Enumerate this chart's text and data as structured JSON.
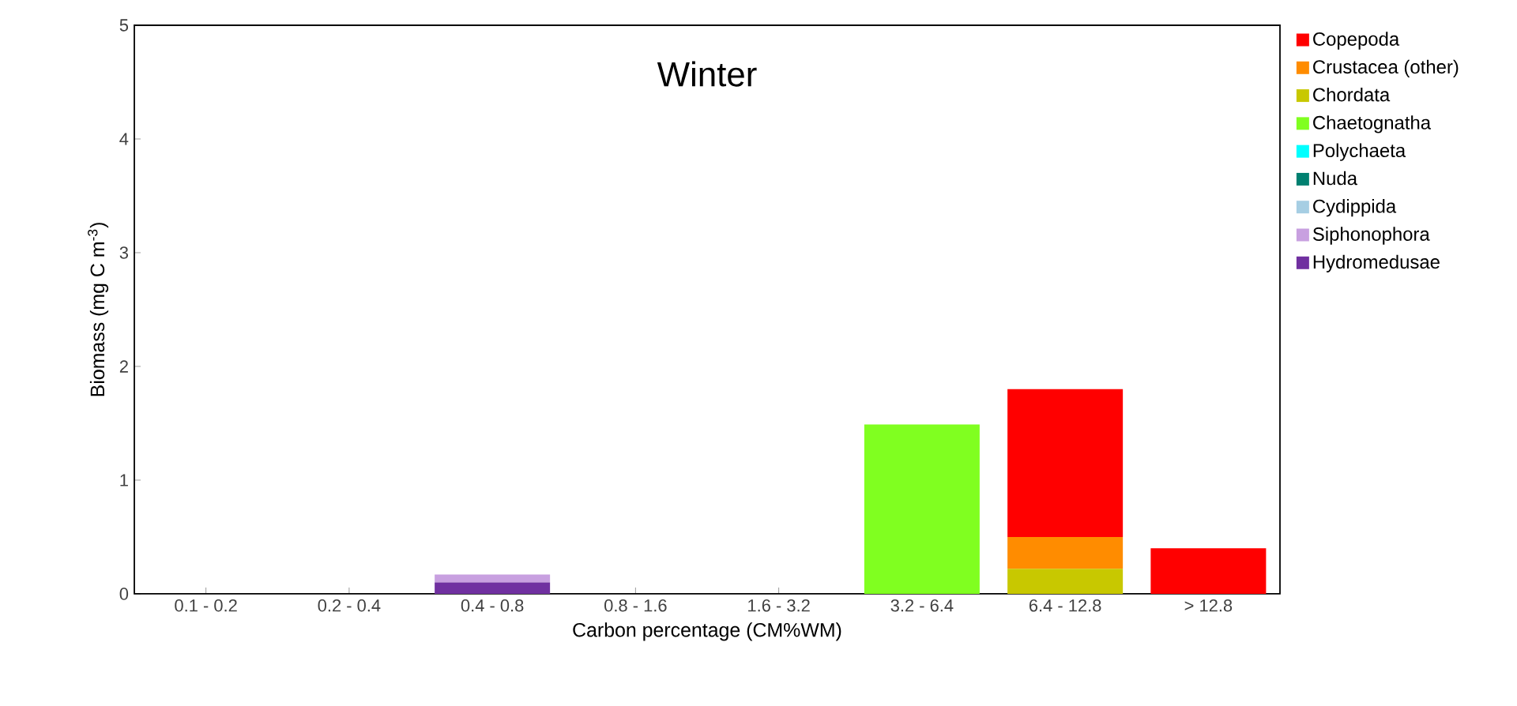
{
  "chart_data": {
    "type": "bar",
    "stacked": true,
    "title": "Winter",
    "xlabel": "Carbon percentage (CM%WM)",
    "ylabel": "Biomass (mg C m$^{-3}$)",
    "categories": [
      "0.1 - 0.2",
      "0.2 - 0.4",
      "0.4 - 0.8",
      "0.8 - 1.6",
      "1.6 - 3.2",
      "3.2 - 6.4",
      "6.4 - 12.8",
      "> 12.8"
    ],
    "ylim": [
      0,
      5
    ],
    "yticks": [
      0,
      1,
      2,
      3,
      4,
      5
    ],
    "grid": false,
    "legend": "right",
    "series": [
      {
        "name": "Hydromedusae",
        "color": "#7030a0",
        "values": [
          0,
          0,
          0.1,
          0,
          0,
          0,
          0,
          0
        ]
      },
      {
        "name": "Siphonophora",
        "color": "#c8a0e0",
        "values": [
          0,
          0,
          0.07,
          0,
          0,
          0,
          0,
          0
        ]
      },
      {
        "name": "Cydippida",
        "color": "#a6cee3",
        "values": [
          0,
          0,
          0,
          0,
          0,
          0,
          0,
          0
        ]
      },
      {
        "name": "Nuda",
        "color": "#008070",
        "values": [
          0,
          0,
          0,
          0,
          0,
          0,
          0,
          0
        ]
      },
      {
        "name": "Polychaeta",
        "color": "#00ffff",
        "values": [
          0,
          0,
          0,
          0,
          0,
          0,
          0,
          0
        ]
      },
      {
        "name": "Chaetognatha",
        "color": "#80ff20",
        "values": [
          0,
          0,
          0,
          0,
          0,
          1.49,
          0,
          0
        ]
      },
      {
        "name": "Chordata",
        "color": "#c8c800",
        "values": [
          0,
          0,
          0,
          0,
          0,
          0,
          0.22,
          0
        ]
      },
      {
        "name": "Crustacea (other)",
        "color": "#ff8c00",
        "values": [
          0,
          0,
          0,
          0,
          0,
          0,
          0.28,
          0
        ]
      },
      {
        "name": "Copepoda",
        "color": "#ff0000",
        "values": [
          0,
          0,
          0,
          0,
          0,
          0,
          1.3,
          0.4
        ]
      }
    ]
  }
}
